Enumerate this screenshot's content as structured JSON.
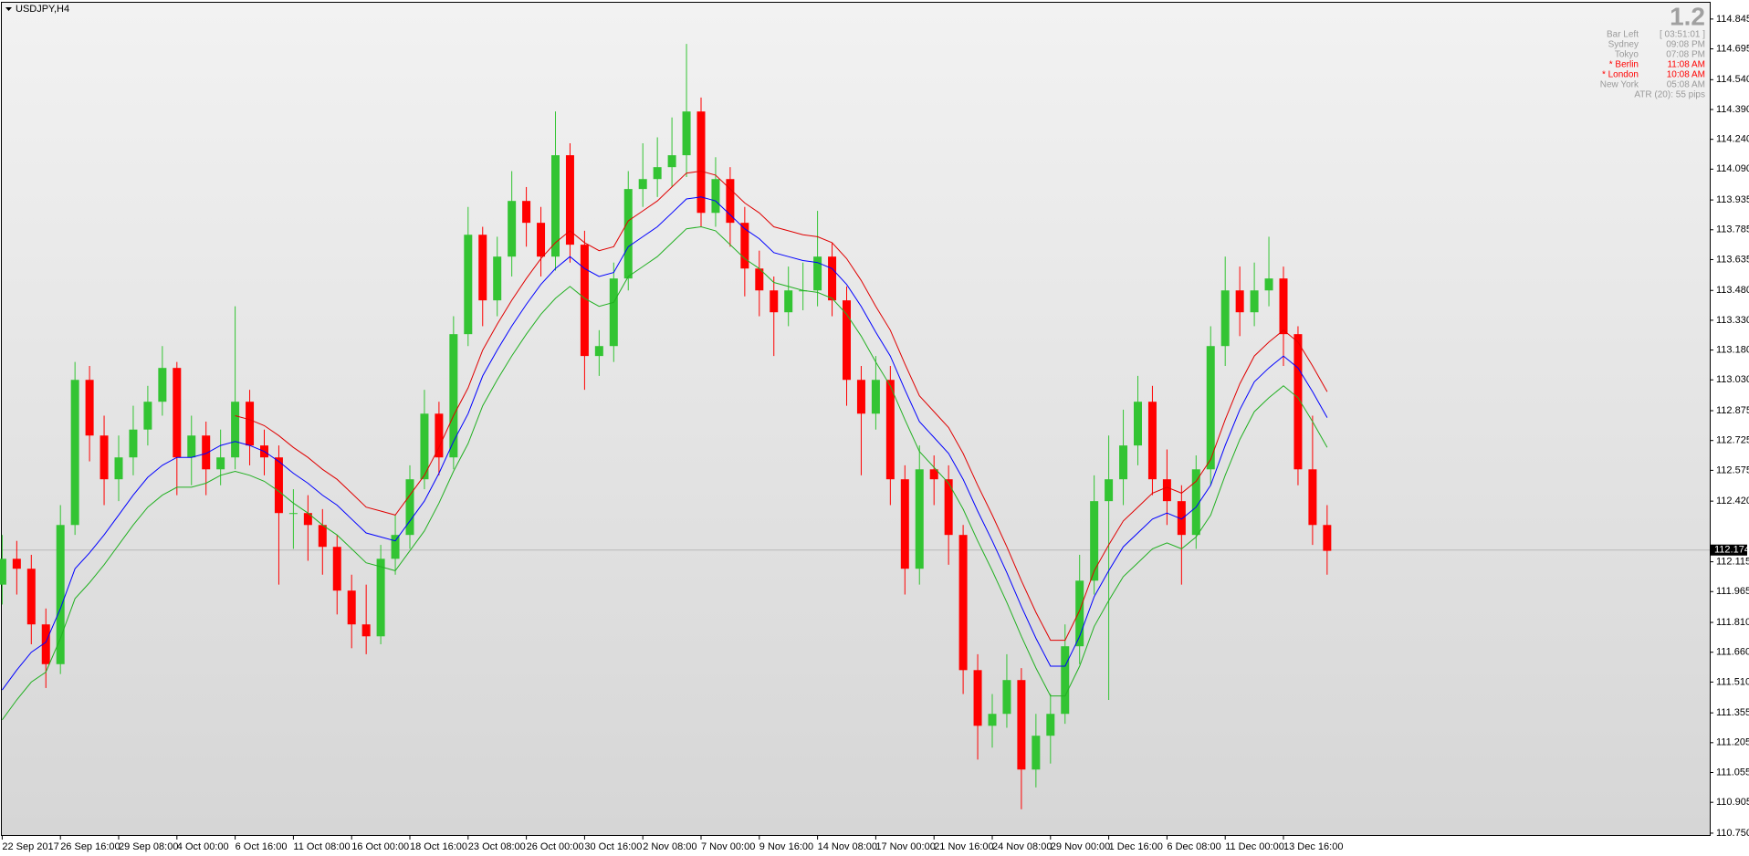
{
  "chart_data": {
    "type": "candlestick",
    "title": "USDJPY,H4",
    "categories": [
      "22 Sep 2017",
      null,
      null,
      null,
      "26 Sep 16:00",
      null,
      null,
      null,
      "29 Sep 08:00",
      null,
      null,
      null,
      "4 Oct 00:00",
      null,
      null,
      null,
      "6 Oct 16:00",
      null,
      null,
      null,
      "11 Oct 08:00",
      null,
      null,
      null,
      "16 Oct 00:00",
      null,
      null,
      null,
      "18 Oct 16:00",
      null,
      null,
      null,
      "23 Oct 08:00",
      null,
      null,
      null,
      "26 Oct 00:00",
      null,
      null,
      null,
      "30 Oct 16:00",
      null,
      null,
      null,
      "2 Nov 08:00",
      null,
      null,
      null,
      "7 Nov 00:00",
      null,
      null,
      null,
      "9 Nov 16:00",
      null,
      null,
      null,
      "14 Nov 08:00",
      null,
      null,
      null,
      "17 Nov 00:00",
      null,
      null,
      null,
      "21 Nov 16:00",
      null,
      null,
      null,
      "24 Nov 08:00",
      null,
      null,
      null,
      "29 Nov 00:00",
      null,
      null,
      null,
      "1 Dec 16:00",
      null,
      null,
      null,
      "6 Dec 08:00",
      null,
      null,
      null,
      "11 Dec 00:00",
      null,
      null,
      null,
      "13 Dec 16:00",
      null,
      null,
      null
    ],
    "open": [
      112.0,
      112.13,
      112.08,
      111.8,
      111.6,
      112.3,
      113.03,
      112.75,
      112.53,
      112.64,
      112.78,
      112.92,
      113.09,
      112.64,
      112.75,
      112.58,
      112.64,
      112.92,
      112.7,
      112.64,
      112.36,
      112.36,
      112.3,
      112.19,
      111.97,
      111.8,
      111.74,
      112.13,
      112.25,
      112.53,
      112.86,
      112.64,
      113.26,
      113.76,
      113.43,
      113.65,
      113.93,
      113.82,
      113.65,
      114.16,
      113.71,
      113.15,
      113.2,
      113.54,
      113.99,
      114.04,
      114.1,
      114.16,
      114.38,
      113.87,
      114.04,
      113.82,
      113.59,
      113.48,
      113.37,
      113.48,
      113.48,
      113.65,
      113.43,
      113.03,
      112.86,
      113.03,
      112.53,
      112.08,
      112.58,
      112.53,
      112.25,
      111.57,
      111.29,
      111.35,
      111.52,
      111.07,
      111.24,
      111.35,
      111.69,
      112.02,
      112.42,
      112.53,
      112.7,
      112.92,
      112.53,
      112.42,
      112.25,
      112.58,
      113.2,
      113.48,
      113.37,
      113.48,
      113.54,
      113.26,
      112.58,
      112.3
    ],
    "high": [
      112.25,
      112.22,
      112.15,
      111.88,
      112.4,
      113.12,
      113.1,
      112.85,
      112.75,
      112.9,
      113.0,
      113.2,
      113.12,
      112.85,
      112.82,
      112.78,
      113.4,
      112.98,
      112.78,
      112.7,
      112.48,
      112.45,
      112.38,
      112.25,
      112.05,
      112.0,
      112.2,
      112.35,
      112.6,
      112.98,
      112.92,
      113.35,
      113.9,
      113.8,
      113.75,
      114.08,
      114.0,
      113.9,
      114.38,
      114.22,
      113.78,
      113.28,
      113.62,
      114.08,
      114.22,
      114.25,
      114.35,
      114.72,
      114.45,
      114.15,
      114.1,
      113.9,
      113.68,
      113.55,
      113.6,
      113.62,
      113.88,
      113.72,
      113.5,
      113.1,
      113.15,
      113.1,
      112.6,
      112.7,
      112.65,
      112.6,
      112.3,
      111.65,
      111.45,
      111.65,
      111.58,
      111.35,
      111.45,
      111.8,
      112.15,
      112.55,
      112.75,
      112.88,
      113.05,
      113.0,
      112.68,
      112.5,
      112.65,
      113.3,
      113.65,
      113.6,
      113.62,
      113.75,
      113.6,
      113.3,
      112.85,
      112.4
    ],
    "low": [
      111.9,
      111.95,
      111.7,
      111.48,
      111.55,
      112.25,
      112.62,
      112.4,
      112.42,
      112.55,
      112.7,
      112.85,
      112.45,
      112.5,
      112.45,
      112.5,
      112.58,
      112.6,
      112.55,
      112.0,
      112.18,
      112.12,
      112.05,
      111.85,
      111.68,
      111.65,
      111.7,
      112.05,
      112.18,
      112.48,
      112.55,
      112.58,
      113.2,
      113.3,
      113.35,
      113.55,
      113.7,
      113.55,
      113.58,
      113.62,
      112.98,
      113.05,
      113.12,
      113.48,
      113.9,
      113.95,
      114.0,
      114.05,
      113.8,
      113.8,
      113.7,
      113.45,
      113.35,
      113.15,
      113.3,
      113.38,
      113.4,
      113.35,
      112.9,
      112.55,
      112.78,
      112.4,
      111.95,
      112.0,
      112.4,
      112.1,
      111.45,
      111.12,
      111.18,
      111.28,
      110.87,
      110.98,
      111.1,
      111.3,
      111.6,
      111.95,
      111.42,
      112.4,
      112.6,
      112.45,
      112.3,
      112.0,
      112.18,
      112.5,
      113.1,
      113.25,
      113.3,
      113.4,
      113.1,
      112.5,
      112.2,
      112.05
    ],
    "close": [
      112.13,
      112.08,
      111.8,
      111.6,
      112.3,
      113.03,
      112.75,
      112.53,
      112.64,
      112.78,
      112.92,
      113.09,
      112.64,
      112.75,
      112.58,
      112.64,
      112.92,
      112.7,
      112.64,
      112.36,
      112.36,
      112.3,
      112.19,
      111.97,
      111.8,
      111.74,
      112.13,
      112.25,
      112.53,
      112.86,
      112.64,
      113.26,
      113.76,
      113.43,
      113.65,
      113.93,
      113.82,
      113.65,
      114.16,
      113.71,
      113.15,
      113.2,
      113.54,
      113.99,
      114.04,
      114.1,
      114.16,
      114.38,
      113.87,
      114.04,
      113.82,
      113.59,
      113.48,
      113.37,
      113.48,
      113.48,
      113.65,
      113.43,
      113.03,
      112.86,
      113.03,
      112.53,
      112.08,
      112.58,
      112.53,
      112.25,
      111.57,
      111.29,
      111.35,
      111.52,
      111.07,
      111.24,
      111.35,
      111.69,
      112.02,
      112.42,
      112.53,
      112.7,
      112.92,
      112.53,
      112.42,
      112.25,
      112.58,
      113.2,
      113.48,
      113.37,
      113.48,
      113.54,
      113.26,
      112.58,
      112.3,
      112.17
    ],
    "up_color": "#33c433",
    "down_color": "#ff0000",
    "lines": [
      {
        "color": "#0000ff",
        "values": [
          111.47,
          111.57,
          111.66,
          111.71,
          111.88,
          112.08,
          112.16,
          112.25,
          112.35,
          112.45,
          112.54,
          112.6,
          112.64,
          112.64,
          112.66,
          112.7,
          112.72,
          112.7,
          112.67,
          112.62,
          112.56,
          112.51,
          112.45,
          112.4,
          112.33,
          112.26,
          112.24,
          112.22,
          112.32,
          112.42,
          112.56,
          112.72,
          112.86,
          113.05,
          113.18,
          113.3,
          113.41,
          113.51,
          113.59,
          113.65,
          113.59,
          113.55,
          113.57,
          113.7,
          113.75,
          113.8,
          113.87,
          113.94,
          113.95,
          113.93,
          113.86,
          113.79,
          113.74,
          113.67,
          113.65,
          113.63,
          113.62,
          113.59,
          113.51,
          113.4,
          113.27,
          113.15,
          112.98,
          112.82,
          112.74,
          112.66,
          112.53,
          112.37,
          112.22,
          112.06,
          111.89,
          111.73,
          111.59,
          111.59,
          111.74,
          111.94,
          112.07,
          112.19,
          112.26,
          112.33,
          112.36,
          112.33,
          112.39,
          112.5,
          112.7,
          112.88,
          113.02,
          113.09,
          113.15,
          113.09,
          112.97,
          112.84
        ]
      },
      {
        "color": "#e00000",
        "values": [
          null,
          null,
          null,
          null,
          null,
          null,
          null,
          null,
          null,
          null,
          null,
          null,
          null,
          null,
          null,
          null,
          112.85,
          112.83,
          112.8,
          112.75,
          112.69,
          112.64,
          112.58,
          112.53,
          112.46,
          112.39,
          112.37,
          112.35,
          112.45,
          112.55,
          112.69,
          112.85,
          112.99,
          113.18,
          113.31,
          113.43,
          113.54,
          113.64,
          113.72,
          113.78,
          113.72,
          113.68,
          113.7,
          113.83,
          113.88,
          113.93,
          114.0,
          114.07,
          114.08,
          114.06,
          113.99,
          113.92,
          113.87,
          113.8,
          113.78,
          113.76,
          113.75,
          113.72,
          113.64,
          113.53,
          113.4,
          113.28,
          113.11,
          112.95,
          112.87,
          112.79,
          112.66,
          112.5,
          112.35,
          112.19,
          112.02,
          111.86,
          111.72,
          111.72,
          111.87,
          112.07,
          112.2,
          112.32,
          112.39,
          112.46,
          112.49,
          112.46,
          112.52,
          112.63,
          112.83,
          113.01,
          113.15,
          113.22,
          113.28,
          113.22,
          113.1,
          112.97
        ]
      },
      {
        "color": "#22b022",
        "values": [
          111.32,
          111.42,
          111.51,
          111.56,
          111.73,
          111.93,
          112.01,
          112.1,
          112.2,
          112.3,
          112.39,
          112.45,
          112.49,
          112.49,
          112.51,
          112.55,
          112.57,
          112.55,
          112.52,
          112.47,
          112.41,
          112.36,
          112.3,
          112.25,
          112.18,
          112.11,
          112.09,
          112.07,
          112.17,
          112.27,
          112.41,
          112.57,
          112.71,
          112.9,
          113.03,
          113.15,
          113.26,
          113.36,
          113.44,
          113.5,
          113.44,
          113.4,
          113.42,
          113.55,
          113.6,
          113.65,
          113.72,
          113.79,
          113.8,
          113.78,
          113.71,
          113.64,
          113.59,
          113.52,
          113.5,
          113.48,
          113.47,
          113.44,
          113.36,
          113.25,
          113.12,
          113.0,
          112.83,
          112.67,
          112.59,
          112.51,
          112.38,
          112.22,
          112.07,
          111.91,
          111.74,
          111.58,
          111.44,
          111.44,
          111.59,
          111.79,
          111.92,
          112.04,
          112.11,
          112.18,
          112.21,
          112.18,
          112.24,
          112.35,
          112.55,
          112.73,
          112.87,
          112.94,
          113.0,
          112.94,
          112.82,
          112.69
        ]
      }
    ],
    "current_price": 112.174,
    "ylim": [
      110.736,
      114.927
    ],
    "yticks": [
      114.845,
      114.695,
      {
        "value": 114.54,
        "label": "114.540"
      },
      {
        "value": 114.39,
        "label": "114.390"
      },
      {
        "value": 114.24,
        "label": "114.240"
      },
      {
        "value": 114.09,
        "label": "114.090"
      },
      113.935,
      113.785,
      113.635,
      {
        "value": 113.48,
        "label": "113.480"
      },
      {
        "value": 113.33,
        "label": "113.330"
      },
      {
        "value": 113.18,
        "label": "113.180"
      },
      {
        "value": 113.03,
        "label": "113.030"
      },
      112.875,
      112.725,
      112.575,
      {
        "value": 112.42,
        "label": "112.420"
      },
      112.115,
      111.965,
      {
        "value": 111.81,
        "label": "111.810"
      },
      {
        "value": 111.66,
        "label": "111.660"
      },
      {
        "value": 111.51,
        "label": "111.510"
      },
      111.355,
      111.205,
      111.055,
      110.905,
      {
        "value": 110.75,
        "label": "110.750"
      }
    ]
  },
  "info_panel": {
    "value": "1.2",
    "rows": [
      {
        "label": "Bar Left",
        "value": "[ 03:51:01 ]",
        "color": "#9a9a9a"
      },
      {
        "label": "Sydney",
        "value": "09:08 PM",
        "color": "#9a9a9a"
      },
      {
        "label": "Tokyo",
        "value": "07:08 PM",
        "color": "#9a9a9a"
      },
      {
        "label": "* Berlin",
        "value": "11:08 AM",
        "color": "#ff0000"
      },
      {
        "label": "* London",
        "value": "10:08 AM",
        "color": "#ff0000"
      },
      {
        "label": "New York",
        "value": "05:08 AM",
        "color": "#9a9a9a"
      }
    ],
    "atr": "ATR (20): 55 pips"
  }
}
